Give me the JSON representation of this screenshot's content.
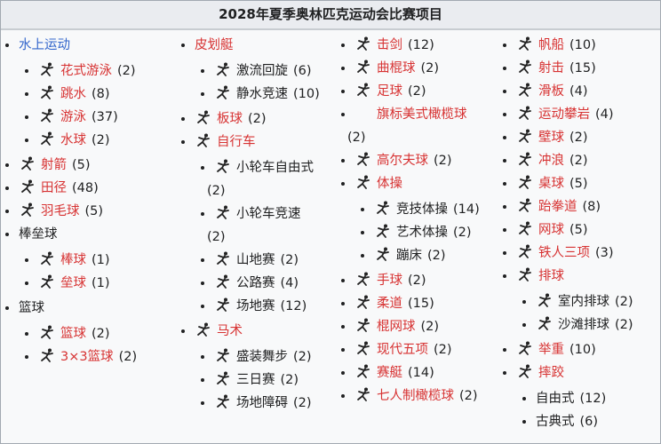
{
  "title": "2028年夏季奥林匹克运动会比赛项目",
  "colors": {
    "redlink": "#d73333",
    "bluelink": "#3366cc",
    "text": "#202122",
    "header_bg": "#eaecf0",
    "body_bg": "#f8f9fa"
  },
  "columns": [
    [
      {
        "label": "水上运动",
        "link": "blue",
        "children": [
          {
            "label": "花式游泳",
            "count": "(2)",
            "link": "red",
            "icon": "artistic-swimming-icon"
          },
          {
            "label": "跳水",
            "count": "(8)",
            "link": "red",
            "icon": "diving-icon"
          },
          {
            "label": "游泳",
            "count": "(37)",
            "link": "red",
            "icon": "swimming-icon"
          },
          {
            "label": "水球",
            "count": "(2)",
            "link": "red",
            "icon": "water-polo-icon"
          }
        ]
      },
      {
        "label": "射箭",
        "count": "(5)",
        "link": "red",
        "icon": "archery-icon"
      },
      {
        "label": "田径",
        "count": "(48)",
        "link": "red",
        "icon": "athletics-icon"
      },
      {
        "label": "羽毛球",
        "count": "(5)",
        "link": "red",
        "icon": "badminton-icon"
      },
      {
        "label": "棒垒球",
        "link": "none",
        "children": [
          {
            "label": "棒球",
            "count": "(1)",
            "link": "red",
            "icon": "baseball-icon"
          },
          {
            "label": "垒球",
            "count": "(1)",
            "link": "red",
            "icon": "softball-icon"
          }
        ]
      },
      {
        "label": "篮球",
        "link": "none",
        "children": [
          {
            "label": "篮球",
            "count": "(2)",
            "link": "red",
            "icon": "basketball-icon"
          },
          {
            "label": "3×3篮球",
            "count": "(2)",
            "link": "red",
            "icon": "3x3-basketball-icon"
          }
        ]
      }
    ],
    [
      {
        "label": "皮划艇",
        "link": "red",
        "children": [
          {
            "label": "激流回旋",
            "count": "(6)",
            "link": "none",
            "icon": "canoe-slalom-icon"
          },
          {
            "label": "静水竞速",
            "count": "(10)",
            "link": "none",
            "icon": "canoe-sprint-icon"
          }
        ]
      },
      {
        "label": "板球",
        "count": "(2)",
        "link": "red",
        "icon": "cricket-icon"
      },
      {
        "label": "自行车",
        "link": "red",
        "icon": "cycling-icon",
        "children": [
          {
            "label": "小轮车自由式",
            "count": "(2)",
            "link": "none",
            "icon": "bmx-freestyle-icon",
            "wrap": true
          },
          {
            "label": "小轮车竞速",
            "count": "(2)",
            "link": "none",
            "icon": "bmx-racing-icon",
            "wrap": true
          },
          {
            "label": "山地赛",
            "count": "(2)",
            "link": "none",
            "icon": "mountain-bike-icon"
          },
          {
            "label": "公路赛",
            "count": "(4)",
            "link": "none",
            "icon": "road-cycling-icon"
          },
          {
            "label": "场地赛",
            "count": "(12)",
            "link": "none",
            "icon": "track-cycling-icon"
          }
        ]
      },
      {
        "label": "马术",
        "link": "red",
        "icon": "equestrian-icon",
        "children": [
          {
            "label": "盛装舞步",
            "count": "(2)",
            "link": "none",
            "icon": "dressage-icon"
          },
          {
            "label": "三日赛",
            "count": "(2)",
            "link": "none",
            "icon": "eventing-icon"
          },
          {
            "label": "场地障碍",
            "count": "(2)",
            "link": "none",
            "icon": "jumping-icon"
          }
        ]
      }
    ],
    [
      {
        "label": "击剑",
        "count": "(12)",
        "link": "red",
        "icon": "fencing-icon"
      },
      {
        "label": "曲棍球",
        "count": "(2)",
        "link": "red",
        "icon": "hockey-icon"
      },
      {
        "label": "足球",
        "count": "(2)",
        "link": "red",
        "icon": "football-icon"
      },
      {
        "label": "旗标美式橄榄球",
        "count": "(2)",
        "link": "red",
        "icon": "flag-football-icon",
        "wrap": true,
        "blankicon": true
      },
      {
        "label": "高尔夫球",
        "count": "(2)",
        "link": "red",
        "icon": "golf-icon"
      },
      {
        "label": "体操",
        "link": "red",
        "icon": "gymnastics-icon",
        "children": [
          {
            "label": "竞技体操",
            "count": "(14)",
            "link": "none",
            "icon": "artistic-gymnastics-icon"
          },
          {
            "label": "艺术体操",
            "count": "(2)",
            "link": "none",
            "icon": "rhythmic-gymnastics-icon"
          },
          {
            "label": "蹦床",
            "count": "(2)",
            "link": "none",
            "icon": "trampoline-icon"
          }
        ]
      },
      {
        "label": "手球",
        "count": "(2)",
        "link": "red",
        "icon": "handball-icon"
      },
      {
        "label": "柔道",
        "count": "(15)",
        "link": "red",
        "icon": "judo-icon"
      },
      {
        "label": "棍网球",
        "count": "(2)",
        "link": "red",
        "icon": "lacrosse-icon"
      },
      {
        "label": "现代五项",
        "count": "(2)",
        "link": "red",
        "icon": "modern-pentathlon-icon"
      },
      {
        "label": "赛艇",
        "count": "(14)",
        "link": "red",
        "icon": "rowing-icon"
      },
      {
        "label": "七人制橄榄球",
        "count": "(2)",
        "link": "red",
        "icon": "rugby-sevens-icon"
      }
    ],
    [
      {
        "label": "帆船",
        "count": "(10)",
        "link": "red",
        "icon": "sailing-icon"
      },
      {
        "label": "射击",
        "count": "(15)",
        "link": "red",
        "icon": "shooting-icon"
      },
      {
        "label": "滑板",
        "count": "(4)",
        "link": "red",
        "icon": "skateboarding-icon"
      },
      {
        "label": "运动攀岩",
        "count": "(4)",
        "link": "red",
        "icon": "sport-climbing-icon"
      },
      {
        "label": "壁球",
        "count": "(2)",
        "link": "red",
        "icon": "squash-icon"
      },
      {
        "label": "冲浪",
        "count": "(2)",
        "link": "red",
        "icon": "surfing-icon"
      },
      {
        "label": "桌球",
        "count": "(5)",
        "link": "red",
        "icon": "table-tennis-icon"
      },
      {
        "label": "跆拳道",
        "count": "(8)",
        "link": "red",
        "icon": "taekwondo-icon"
      },
      {
        "label": "网球",
        "count": "(5)",
        "link": "red",
        "icon": "tennis-icon"
      },
      {
        "label": "铁人三项",
        "count": "(3)",
        "link": "red",
        "icon": "triathlon-icon"
      },
      {
        "label": "排球",
        "link": "red",
        "icon": "volleyball-icon",
        "children": [
          {
            "label": "室内排球",
            "count": "(2)",
            "link": "none",
            "icon": "indoor-volleyball-icon"
          },
          {
            "label": "沙滩排球",
            "count": "(2)",
            "link": "none",
            "icon": "beach-volleyball-icon"
          }
        ]
      },
      {
        "label": "举重",
        "count": "(10)",
        "link": "red",
        "icon": "weightlifting-icon"
      },
      {
        "label": "摔跤",
        "link": "red",
        "icon": "wrestling-icon",
        "children": [
          {
            "label": "自由式",
            "count": "(12)",
            "link": "none"
          },
          {
            "label": "古典式",
            "count": "(6)",
            "link": "none"
          }
        ]
      }
    ]
  ]
}
